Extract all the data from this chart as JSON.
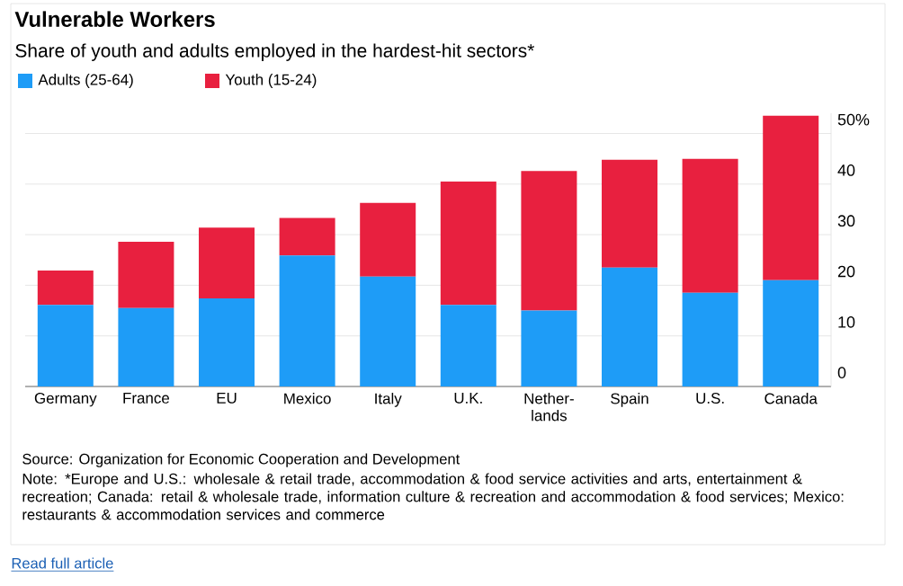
{
  "chart_data": {
    "type": "bar",
    "stacked": true,
    "title": "Vulnerable Workers",
    "subtitle": "Share of youth and adults employed in the hardest-hit sectors*",
    "categories": [
      "Germany",
      "France",
      "EU",
      "Mexico",
      "Italy",
      "U.K.",
      "Nether-lands",
      "Spain",
      "U.S.",
      "Canada"
    ],
    "series": [
      {
        "name": "Adults (25-64)",
        "color": "#1e9cf7",
        "values": [
          16.1,
          15.5,
          17.4,
          25.9,
          21.7,
          16.1,
          15.0,
          23.5,
          18.5,
          21.0
        ]
      },
      {
        "name": "Youth (15-24)",
        "color": "#e8203f",
        "values": [
          6.8,
          13.1,
          14.0,
          7.4,
          14.6,
          24.4,
          27.6,
          21.3,
          26.5,
          32.5
        ]
      }
    ],
    "ylim": [
      0,
      54
    ],
    "yticks": [
      0,
      10,
      20,
      30,
      40,
      {
        "value": 50,
        "label": "50%"
      }
    ],
    "grid": "y",
    "legend": "top left",
    "annotations": [
      "Source: Organization for Economic Cooperation and Development",
      "Note: *Europe and U.S.: wholesale & retail trade, accommodation & food service activities and arts, entertainment & recreation; Canada: retail & wholesale trade, information culture & recreation and accommodation & food services; Mexico: restaurants & accommodation services and commerce",
      "Read full article"
    ]
  }
}
